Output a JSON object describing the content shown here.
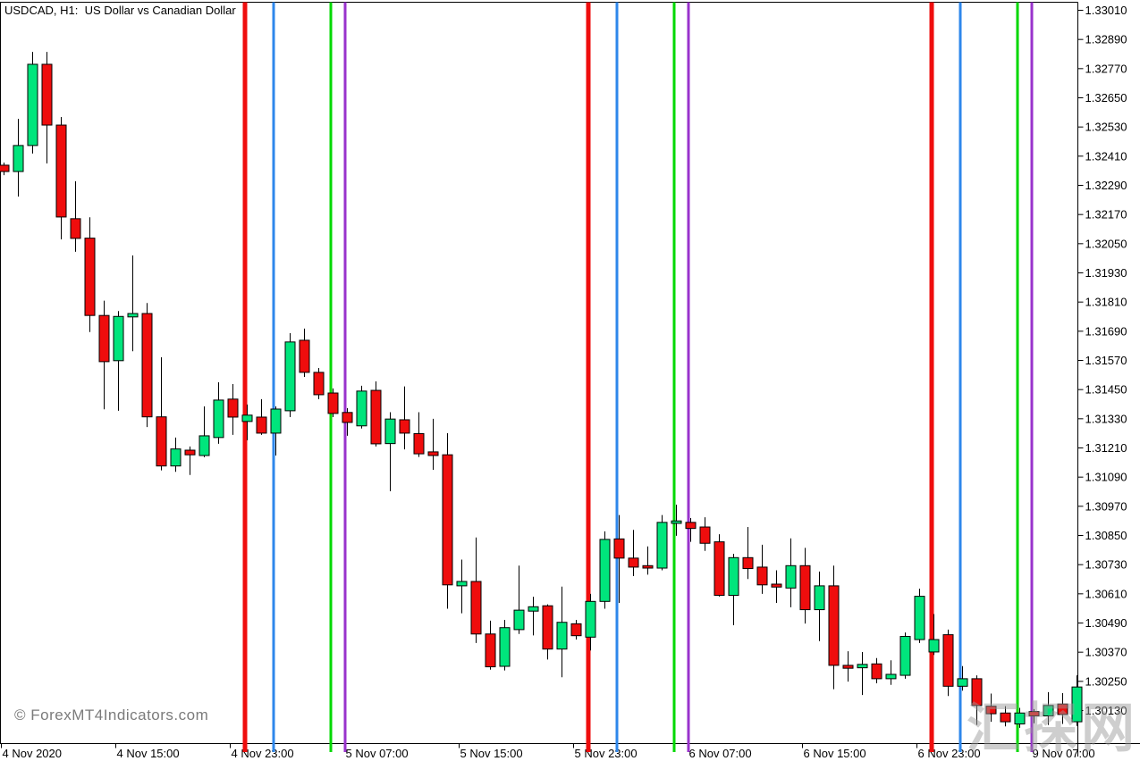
{
  "header": {
    "symbol_label": "USDCAD, H1:  US Dollar vs Canadian Dollar"
  },
  "watermarks": {
    "bottom_left": "© ForexMT4Indicators.com",
    "bottom_right": "汇探网"
  },
  "colors": {
    "background": "#FFFFFF",
    "axis": "#000000",
    "bull": "#00E57C",
    "bear": "#EF0D0D",
    "wick": "#000000",
    "line_red": "#EF0D0D",
    "line_blue": "#2E87EB",
    "line_green": "#00D800",
    "line_purple": "#9933CC",
    "watermark_gray": "#7B7B7B",
    "watermark_cn_gray": "#9A9A9A"
  },
  "chart_data": {
    "type": "candlestick",
    "symbol": "USDCAD",
    "timeframe": "H1",
    "title": "USDCAD, H1:  US Dollar vs Canadian Dollar",
    "grid": false,
    "legend": false,
    "y_axis": {
      "side": "right",
      "top_price": 1.3301,
      "bottom_price": 1.3013,
      "tick_step": 0.0012,
      "labels": [
        "1.33010",
        "1.32890",
        "1.32770",
        "1.32650",
        "1.32530",
        "1.32410",
        "1.32290",
        "1.32170",
        "1.32050",
        "1.31930",
        "1.31810",
        "1.31690",
        "1.31570",
        "1.31450",
        "1.31330",
        "1.31210",
        "1.31090",
        "1.30970",
        "1.30850",
        "1.30730",
        "1.30610",
        "1.30490",
        "1.30370",
        "1.30250",
        "1.30130"
      ]
    },
    "x_axis": {
      "labels": [
        "4 Nov 2020",
        "4 Nov 15:00",
        "4 Nov 23:00",
        "5 Nov 07:00",
        "5 Nov 15:00",
        "5 Nov 23:00",
        "6 Nov 07:00",
        "6 Nov 15:00",
        "6 Nov 23:00",
        "9 Nov 07:00"
      ]
    },
    "vertical_lines": [
      {
        "time": "5 Nov 00:00",
        "color": "red",
        "bar": 17
      },
      {
        "time": "5 Nov 02:00",
        "color": "blue",
        "bar": 19
      },
      {
        "time": "5 Nov 06:00",
        "color": "green",
        "bar": 23
      },
      {
        "time": "5 Nov 07:00",
        "color": "purple",
        "bar": 24
      },
      {
        "time": "6 Nov 00:00",
        "color": "red",
        "bar": 41
      },
      {
        "time": "6 Nov 02:00",
        "color": "blue",
        "bar": 43
      },
      {
        "time": "6 Nov 06:00",
        "color": "green",
        "bar": 47
      },
      {
        "time": "6 Nov 07:00",
        "color": "purple",
        "bar": 48
      },
      {
        "time": "9 Nov 00:00",
        "color": "red",
        "bar": 65
      },
      {
        "time": "9 Nov 02:00",
        "color": "blue",
        "bar": 67
      },
      {
        "time": "9 Nov 06:00",
        "color": "green",
        "bar": 71
      },
      {
        "time": "9 Nov 07:00",
        "color": "purple",
        "bar": 72
      }
    ],
    "candles": [
      [
        "4 Nov 07:00",
        1.32371,
        1.32382,
        1.3233,
        1.32345
      ],
      [
        "4 Nov 08:00",
        1.32345,
        1.32562,
        1.32242,
        1.32452
      ],
      [
        "4 Nov 09:00",
        1.32452,
        1.32837,
        1.32419,
        1.32786
      ],
      [
        "4 Nov 10:00",
        1.32786,
        1.32837,
        1.32378,
        1.32536
      ],
      [
        "4 Nov 11:00",
        1.32536,
        1.32569,
        1.32066,
        1.32158
      ],
      [
        "4 Nov 12:00",
        1.32151,
        1.32305,
        1.32015,
        1.3207
      ],
      [
        "4 Nov 13:00",
        1.32071,
        1.32157,
        1.31685,
        1.31753
      ],
      [
        "4 Nov 14:00",
        1.31753,
        1.31814,
        1.31367,
        1.31563
      ],
      [
        "4 Nov 15:00",
        1.31567,
        1.31771,
        1.31361,
        1.31749
      ],
      [
        "4 Nov 16:00",
        1.31747,
        1.32,
        1.31606,
        1.31761
      ],
      [
        "4 Nov 17:00",
        1.31761,
        1.31804,
        1.31294,
        1.31336
      ],
      [
        "4 Nov 18:00",
        1.31336,
        1.31581,
        1.31116,
        1.31134
      ],
      [
        "4 Nov 19:00",
        1.31134,
        1.31251,
        1.3111,
        1.31204
      ],
      [
        "4 Nov 20:00",
        1.31199,
        1.31214,
        1.31097,
        1.3118
      ],
      [
        "4 Nov 21:00",
        1.31177,
        1.31379,
        1.3117,
        1.31258
      ],
      [
        "4 Nov 22:00",
        1.31251,
        1.31478,
        1.31225,
        1.31405
      ],
      [
        "4 Nov 23:00",
        1.31409,
        1.31471,
        1.31262,
        1.31335
      ],
      [
        "5 Nov 00:00",
        1.31317,
        1.31387,
        1.3124,
        1.31343
      ],
      [
        "5 Nov 01:00",
        1.31335,
        1.31409,
        1.31262,
        1.31269
      ],
      [
        "5 Nov 02:00",
        1.31269,
        1.31379,
        1.31177,
        1.31368
      ],
      [
        "5 Nov 03:00",
        1.31361,
        1.3168,
        1.31335,
        1.31644
      ],
      [
        "5 Nov 04:00",
        1.31651,
        1.31699,
        1.315,
        1.31519
      ],
      [
        "5 Nov 05:00",
        1.31519,
        1.31537,
        1.31409,
        1.31427
      ],
      [
        "5 Nov 06:00",
        1.31434,
        1.31453,
        1.31335,
        1.3135
      ],
      [
        "5 Nov 07:00",
        1.31354,
        1.31372,
        1.31258,
        1.31313
      ],
      [
        "5 Nov 08:00",
        1.31299,
        1.31464,
        1.31288,
        1.31442
      ],
      [
        "5 Nov 09:00",
        1.31445,
        1.31482,
        1.31214,
        1.31225
      ],
      [
        "5 Nov 10:00",
        1.31226,
        1.31355,
        1.3103,
        1.31327
      ],
      [
        "5 Nov 11:00",
        1.31324,
        1.31461,
        1.31202,
        1.31269
      ],
      [
        "5 Nov 12:00",
        1.31267,
        1.31355,
        1.31171,
        1.31184
      ],
      [
        "5 Nov 13:00",
        1.31192,
        1.31328,
        1.31118,
        1.31177
      ],
      [
        "5 Nov 14:00",
        1.3118,
        1.31269,
        1.30547,
        1.30645
      ],
      [
        "5 Nov 15:00",
        1.30641,
        1.30749,
        1.30528,
        1.30659
      ],
      [
        "5 Nov 16:00",
        1.30659,
        1.3084,
        1.30406,
        1.30443
      ],
      [
        "5 Nov 17:00",
        1.30443,
        1.30498,
        1.30296,
        1.30308
      ],
      [
        "5 Nov 18:00",
        1.3031,
        1.30501,
        1.30293,
        1.30469
      ],
      [
        "5 Nov 19:00",
        1.30461,
        1.30724,
        1.30443,
        1.30541
      ],
      [
        "5 Nov 20:00",
        1.30537,
        1.30596,
        1.30437,
        1.30555
      ],
      [
        "5 Nov 21:00",
        1.30559,
        1.30565,
        1.30338,
        1.30381
      ],
      [
        "5 Nov 22:00",
        1.30381,
        1.30638,
        1.30265,
        1.30491
      ],
      [
        "5 Nov 23:00",
        1.30485,
        1.30501,
        1.3042,
        1.30436
      ],
      [
        "6 Nov 00:00",
        1.3043,
        1.30608,
        1.30375,
        1.30577
      ],
      [
        "6 Nov 01:00",
        1.30577,
        1.30865,
        1.30547,
        1.30832
      ],
      [
        "6 Nov 02:00",
        1.30834,
        1.30932,
        1.30571,
        1.30755
      ],
      [
        "6 Nov 03:00",
        1.30755,
        1.30871,
        1.30681,
        1.30718
      ],
      [
        "6 Nov 04:00",
        1.30724,
        1.30803,
        1.30687,
        1.30714
      ],
      [
        "6 Nov 05:00",
        1.30714,
        1.30932,
        1.30705,
        1.30902
      ],
      [
        "6 Nov 06:00",
        1.30898,
        1.30975,
        1.30847,
        1.30908
      ],
      [
        "6 Nov 07:00",
        1.30902,
        1.3092,
        1.30822,
        1.30877
      ],
      [
        "6 Nov 08:00",
        1.30883,
        1.30923,
        1.30785,
        1.30816
      ],
      [
        "6 Nov 09:00",
        1.30822,
        1.30853,
        1.30597,
        1.30602
      ],
      [
        "6 Nov 10:00",
        1.30602,
        1.30773,
        1.30479,
        1.30757
      ],
      [
        "6 Nov 11:00",
        1.30757,
        1.30883,
        1.30669,
        1.30712
      ],
      [
        "6 Nov 12:00",
        1.30718,
        1.3081,
        1.30608,
        1.30645
      ],
      [
        "6 Nov 13:00",
        1.30648,
        1.30705,
        1.30571,
        1.30636
      ],
      [
        "6 Nov 14:00",
        1.30632,
        1.30836,
        1.30553,
        1.30724
      ],
      [
        "6 Nov 15:00",
        1.30724,
        1.30797,
        1.30486,
        1.30543
      ],
      [
        "6 Nov 16:00",
        1.30543,
        1.307,
        1.30414,
        1.30641
      ],
      [
        "6 Nov 17:00",
        1.30641,
        1.30724,
        1.30216,
        1.30314
      ],
      [
        "6 Nov 18:00",
        1.30314,
        1.30372,
        1.30247,
        1.30302
      ],
      [
        "6 Nov 19:00",
        1.30304,
        1.30369,
        1.30192,
        1.30318
      ],
      [
        "6 Nov 20:00",
        1.3032,
        1.30344,
        1.3024,
        1.30259
      ],
      [
        "6 Nov 21:00",
        1.30259,
        1.30335,
        1.30234,
        1.30277
      ],
      [
        "6 Nov 22:00",
        1.30273,
        1.30449,
        1.30259,
        1.30433
      ],
      [
        "6 Nov 23:00",
        1.3042,
        1.30629,
        1.30406,
        1.30598
      ],
      [
        "9 Nov 00:00",
        1.30369,
        1.30525,
        1.30357,
        1.3042
      ],
      [
        "9 Nov 01:00",
        1.3044,
        1.30461,
        1.30188,
        1.30228
      ],
      [
        "9 Nov 02:00",
        1.30228,
        1.30311,
        1.3021,
        1.30259
      ],
      [
        "9 Nov 03:00",
        1.30259,
        1.30273,
        1.30069,
        1.30149
      ],
      [
        "9 Nov 04:00",
        1.30146,
        1.30198,
        1.30082,
        1.30115
      ],
      [
        "9 Nov 05:00",
        1.30118,
        1.30146,
        1.30063,
        1.30082
      ],
      [
        "9 Nov 06:00",
        1.30073,
        1.30139,
        1.30057,
        1.30118
      ],
      [
        "9 Nov 07:00",
        1.30124,
        1.30134,
        1.30076,
        1.30106
      ],
      [
        "9 Nov 08:00",
        1.30106,
        1.30204,
        1.30069,
        1.30149
      ],
      [
        "9 Nov 09:00",
        1.30155,
        1.302,
        1.30073,
        1.30112
      ],
      [
        "9 Nov 10:00",
        1.30082,
        1.30273,
        1.30065,
        1.30225
      ]
    ]
  }
}
